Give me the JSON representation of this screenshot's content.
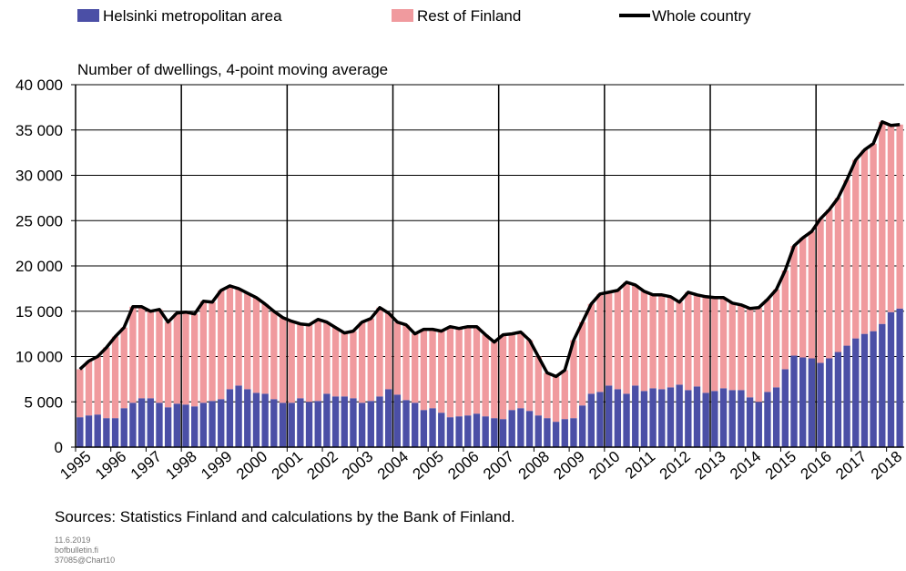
{
  "chart_data": {
    "type": "bar",
    "y_label": "Number of dwellings, 4-point moving average",
    "source": "Sources: Statistics Finland and calculations by the Bank of Finland.",
    "footnotes": [
      "11.6.2019",
      "bofbulletin.fi",
      "37085@Chart10"
    ],
    "stacked": true,
    "grid": true,
    "categories": [
      "1995",
      null,
      null,
      null,
      "1996",
      null,
      null,
      null,
      "1997",
      null,
      null,
      null,
      "1998",
      null,
      null,
      null,
      "1999",
      null,
      null,
      null,
      "2000",
      null,
      null,
      null,
      "2001",
      null,
      null,
      null,
      "2002",
      null,
      null,
      null,
      "2003",
      null,
      null,
      null,
      "2004",
      null,
      null,
      null,
      "2005",
      null,
      null,
      null,
      "2006",
      null,
      null,
      null,
      "2007",
      null,
      null,
      null,
      "2008",
      null,
      null,
      null,
      "2009",
      null,
      null,
      null,
      "2010",
      null,
      null,
      null,
      "2011",
      null,
      null,
      null,
      "2012",
      null,
      null,
      null,
      "2013",
      null,
      null,
      null,
      "2014",
      null,
      null,
      null,
      "2015",
      null,
      null,
      null,
      "2016",
      null,
      null,
      null,
      "2017",
      null,
      null,
      null,
      "2018",
      null
    ],
    "ylim": [
      0,
      40000
    ],
    "yticks": [
      0,
      {
        "value": 5000,
        "label": "5 000"
      },
      {
        "value": 10000,
        "label": "10 000"
      },
      {
        "value": 15000,
        "label": "15 000"
      },
      {
        "value": 20000,
        "label": "20 000"
      },
      {
        "value": 25000,
        "label": "25 000"
      },
      {
        "value": 30000,
        "label": "30 000"
      },
      {
        "value": 35000,
        "label": "35 000"
      },
      {
        "value": 40000,
        "label": "40 000"
      }
    ],
    "series": [
      {
        "name": "Helsinki metropolitan area",
        "type": "bar",
        "color": "#4b4fa6",
        "values": [
          3300,
          3500,
          3600,
          3200,
          3200,
          4300,
          4900,
          5400,
          5400,
          4900,
          4400,
          4800,
          4700,
          4500,
          4900,
          5100,
          5300,
          6400,
          6800,
          6400,
          6000,
          5900,
          5300,
          4900,
          4900,
          5400,
          5000,
          5100,
          5900,
          5600,
          5600,
          5400,
          4900,
          5100,
          5600,
          6400,
          5800,
          5200,
          4900,
          4100,
          4300,
          3800,
          3300,
          3400,
          3500,
          3700,
          3400,
          3200,
          3100,
          4100,
          4300,
          4000,
          3500,
          3200,
          2800,
          3100,
          3200,
          4600,
          5900,
          6100,
          6800,
          6400,
          5900,
          6800,
          6200,
          6500,
          6400,
          6600,
          6900,
          6300,
          6700,
          6000,
          6200,
          6500,
          6300,
          6300,
          5500,
          5000,
          6100,
          6600,
          8600,
          10100,
          9900,
          9800,
          9300,
          9800,
          10500,
          11200,
          12000,
          12500,
          12800,
          13600,
          14900,
          15300
        ]
      },
      {
        "name": "Rest of Finland",
        "type": "bar",
        "color": "#f09a9e",
        "values": [
          5300,
          6000,
          6400,
          7800,
          9000,
          8900,
          10600,
          10100,
          9600,
          10300,
          9400,
          10000,
          10200,
          10200,
          11200,
          10900,
          12000,
          11400,
          10700,
          10600,
          10500,
          9900,
          9700,
          9400,
          9000,
          8200,
          8500,
          9000,
          7900,
          7600,
          7000,
          7400,
          8900,
          9100,
          9800,
          8400,
          8000,
          8300,
          7600,
          8900,
          8700,
          9000,
          10000,
          9700,
          9800,
          9600,
          9000,
          8400,
          9300,
          8400,
          8400,
          7800,
          6500,
          5000,
          5000,
          5400,
          8600,
          9200,
          9900,
          10800,
          10300,
          10900,
          12300,
          11100,
          11000,
          10300,
          10400,
          10000,
          9100,
          10800,
          10100,
          10600,
          10300,
          10000,
          9600,
          9400,
          9800,
          10400,
          10200,
          10800,
          10900,
          12100,
          13200,
          14000,
          15900,
          16400,
          17000,
          18300,
          19700,
          20300,
          20700,
          22300,
          20600,
          20300
        ]
      },
      {
        "name": "Whole country",
        "type": "line",
        "color": "#000000",
        "values": [
          8600,
          9500,
          10000,
          11000,
          12200,
          13200,
          15500,
          15500,
          15000,
          15200,
          13800,
          14800,
          14900,
          14700,
          16100,
          16000,
          17300,
          17800,
          17500,
          17000,
          16500,
          15800,
          15000,
          14300,
          13900,
          13600,
          13500,
          14100,
          13800,
          13200,
          12600,
          12800,
          13800,
          14200,
          15400,
          14800,
          13800,
          13500,
          12500,
          13000,
          13000,
          12800,
          13300,
          13100,
          13300,
          13300,
          12400,
          11600,
          12400,
          12500,
          12700,
          11800,
          10000,
          8200,
          7800,
          8500,
          11800,
          13800,
          15800,
          16900,
          17100,
          17300,
          18200,
          17900,
          17200,
          16800,
          16800,
          16600,
          16000,
          17100,
          16800,
          16600,
          16500,
          16500,
          15900,
          15700,
          15300,
          15400,
          16300,
          17400,
          19500,
          22200,
          23100,
          23800,
          25200,
          26200,
          27500,
          29500,
          31700,
          32800,
          33500,
          35900,
          35500,
          35600
        ]
      }
    ]
  }
}
